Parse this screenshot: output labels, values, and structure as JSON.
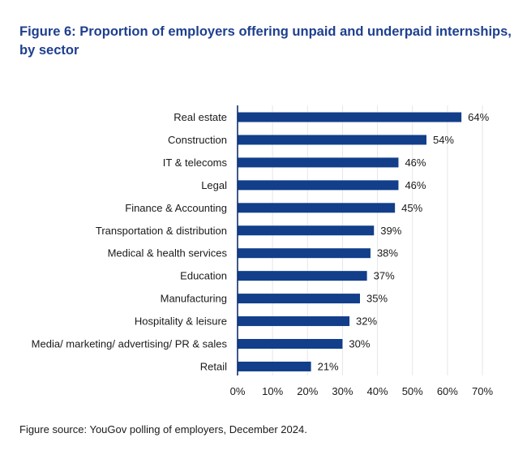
{
  "title_line1": "Figure 6: Proportion of employers offering unpaid and underpaid internships,",
  "title_line2": "by sector",
  "source": "Figure source: YouGov polling of employers, December 2024.",
  "colors": {
    "title": "#1e3f8f",
    "bar": "#123e8a",
    "axis": "#0f2f6e",
    "grid": "#e6e6e6"
  },
  "chart_data": {
    "type": "bar",
    "orientation": "horizontal",
    "categories": [
      "Real estate",
      "Construction",
      "IT & telecoms",
      "Legal",
      "Finance & Accounting",
      "Transportation & distribution",
      "Medical & health services",
      "Education",
      "Manufacturing",
      "Hospitality & leisure",
      "Media/ marketing/ advertising/ PR & sales",
      "Retail"
    ],
    "values": [
      64,
      54,
      46,
      46,
      45,
      39,
      38,
      37,
      35,
      32,
      30,
      21
    ],
    "value_labels": [
      "64%",
      "54%",
      "46%",
      "46%",
      "45%",
      "39%",
      "38%",
      "37%",
      "35%",
      "32%",
      "30%",
      "21%"
    ],
    "xlim": [
      0,
      70
    ],
    "xticks": [
      0,
      10,
      20,
      30,
      40,
      50,
      60,
      70
    ],
    "xtick_labels": [
      "0%",
      "10%",
      "20%",
      "30%",
      "40%",
      "50%",
      "60%",
      "70%"
    ],
    "grid": true,
    "legend": false
  }
}
